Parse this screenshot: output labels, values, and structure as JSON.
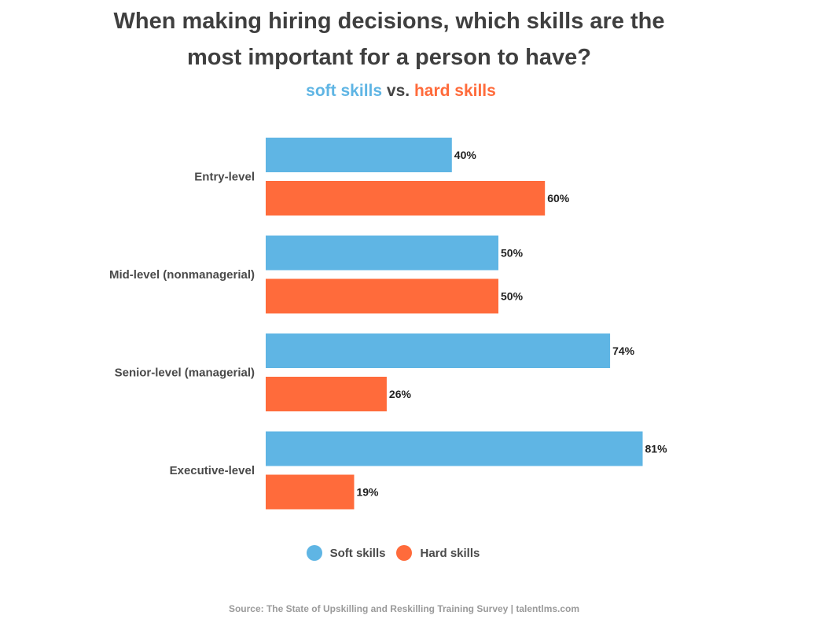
{
  "title_line1": "When making hiring decisions, which skills are the",
  "title_line2": "most important for a person to have?",
  "subtitle": {
    "soft": "soft skills",
    "vs": "vs.",
    "hard": "hard skills"
  },
  "legend": {
    "soft": "Soft skills",
    "hard": "Hard skills"
  },
  "source": "Source: The State of Upskilling and Reskilling Training Survey  |  talentlms.com",
  "colors": {
    "soft": "#5fb5e4",
    "hard": "#ff6b3b"
  },
  "chart_data": {
    "type": "bar",
    "orientation": "horizontal",
    "categories": [
      "Entry-level",
      "Mid-level (nonmanagerial)",
      "Senior-level (managerial)",
      "Executive-level"
    ],
    "series": [
      {
        "name": "Soft skills",
        "values": [
          40,
          50,
          74,
          81
        ],
        "labels": [
          "40%",
          "50%",
          "74%",
          "81%"
        ]
      },
      {
        "name": "Hard skills",
        "values": [
          60,
          50,
          26,
          19
        ],
        "labels": [
          "60%",
          "50%",
          "26%",
          "19%"
        ]
      }
    ],
    "xlim": [
      0,
      100
    ],
    "grid": false,
    "legend_position": "bottom"
  }
}
